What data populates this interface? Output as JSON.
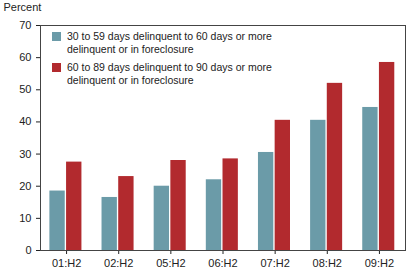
{
  "chart_data": {
    "type": "bar",
    "ylabel": "Percent",
    "categories": [
      "01:H2",
      "02:H2",
      "05:H2",
      "06:H2",
      "07:H2",
      "08:H2",
      "09:H2"
    ],
    "series": [
      {
        "name": "30 to 59 days delinquent to 60 days or more delinquent or in foreclosure",
        "color": "#6b9ba8",
        "values": [
          18.5,
          16.5,
          20,
          22,
          30.5,
          40.5,
          44.5
        ]
      },
      {
        "name": "60 to 89 days delinquent to 90 days or more delinquent or in foreclosure",
        "color": "#b22a2e",
        "values": [
          27.5,
          23,
          28,
          28.5,
          40.5,
          52,
          58.5
        ]
      }
    ],
    "ylim": [
      0,
      70
    ],
    "yticks": [
      0,
      10,
      20,
      30,
      40,
      50,
      60,
      70
    ],
    "grid": false,
    "legend": "upper left"
  }
}
